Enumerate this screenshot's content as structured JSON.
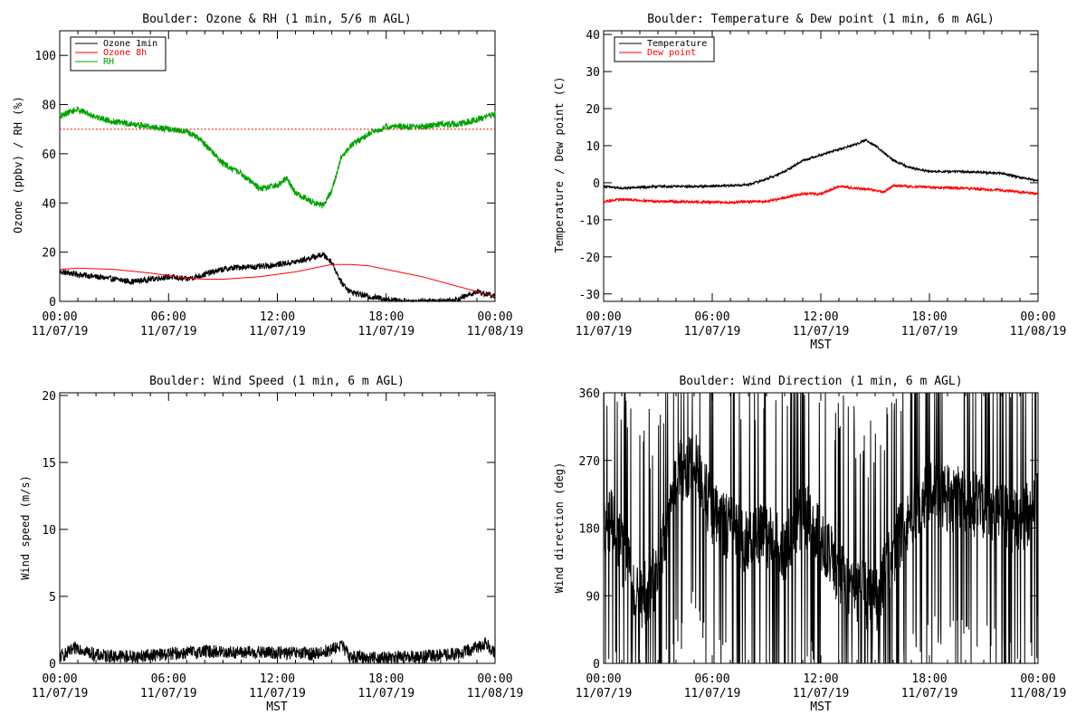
{
  "chart_data": [
    {
      "type": "line",
      "title": "Boulder: Ozone & RH (1 min, 5/6 m AGL)",
      "xlabel": "",
      "ylabel": "Ozone (ppbv) / RH (%)",
      "xlim": [
        0,
        24
      ],
      "ylim": [
        0,
        110
      ],
      "yticks": [
        0,
        20,
        40,
        60,
        80,
        100
      ],
      "xtick_labels": [
        {
          "time": "00:00",
          "date": "11/07/19"
        },
        {
          "time": "06:00",
          "date": "11/07/19"
        },
        {
          "time": "12:00",
          "date": "11/07/19"
        },
        {
          "time": "18:00",
          "date": "11/07/19"
        },
        {
          "time": "00:00",
          "date": "11/08/19"
        }
      ],
      "legend_position": "top-left",
      "reference_line": {
        "y": 70,
        "color": "#ff0000",
        "style": "dotted"
      },
      "series": [
        {
          "name": "Ozone 1min",
          "color": "#000000",
          "noise": 1.2,
          "x": [
            0,
            1,
            2,
            3,
            4,
            5,
            6,
            7,
            8,
            9,
            10,
            11,
            12,
            13,
            14,
            14.5,
            15,
            15.5,
            16,
            17,
            18,
            19,
            20,
            21,
            22,
            23,
            24
          ],
          "y": [
            12,
            11,
            10,
            9,
            8,
            9,
            10,
            9,
            11,
            13,
            14,
            14,
            15,
            16,
            18,
            19,
            16,
            8,
            4,
            2,
            1,
            0,
            0,
            0,
            1,
            4,
            2
          ]
        },
        {
          "name": "Ozone 8h",
          "color": "#ff0000",
          "noise": 0,
          "x": [
            0,
            1,
            3,
            5,
            7,
            8,
            9,
            11,
            13,
            14,
            15,
            16,
            17,
            18,
            20,
            22,
            23,
            24
          ],
          "y": [
            13,
            13.5,
            13,
            11.5,
            9.5,
            9,
            9,
            10,
            12,
            13.5,
            15,
            15,
            14.5,
            13,
            10,
            6,
            4,
            2
          ]
        },
        {
          "name": "RH",
          "color": "#00a000",
          "noise": 1.3,
          "x": [
            0,
            0.5,
            1,
            2,
            3,
            4,
            5,
            6,
            7,
            7.5,
            8,
            9,
            10,
            11,
            12,
            12.5,
            13,
            14,
            14.5,
            15,
            15.5,
            16,
            17,
            18,
            19,
            20,
            21,
            22,
            23,
            24
          ],
          "y": [
            75,
            77,
            78,
            75,
            73,
            72,
            71,
            70,
            69,
            67,
            64,
            56,
            52,
            46,
            47,
            50,
            44,
            40,
            39,
            45,
            58,
            63,
            68,
            71,
            71,
            71,
            72,
            72,
            74,
            76
          ]
        }
      ]
    },
    {
      "type": "line",
      "title": "Boulder: Temperature & Dew point (1 min, 6 m AGL)",
      "xlabel": "MST",
      "ylabel": "Temperature / Dew point (C)",
      "xlim": [
        0,
        24
      ],
      "ylim": [
        -32,
        41
      ],
      "yticks": [
        -30,
        -20,
        -10,
        0,
        10,
        20,
        30,
        40
      ],
      "xtick_labels": [
        {
          "time": "00:00",
          "date": "11/07/19"
        },
        {
          "time": "06:00",
          "date": "11/07/19"
        },
        {
          "time": "12:00",
          "date": "11/07/19"
        },
        {
          "time": "18:00",
          "date": "11/07/19"
        },
        {
          "time": "00:00",
          "date": "11/08/19"
        }
      ],
      "legend_position": "top-left",
      "series": [
        {
          "name": "Temperature",
          "color": "#000000",
          "noise": 0.3,
          "x": [
            0,
            1,
            3,
            5,
            7,
            8,
            9,
            10,
            11,
            12,
            13,
            14,
            14.5,
            15,
            16,
            17,
            18,
            20,
            22,
            23,
            24
          ],
          "y": [
            -1,
            -1.5,
            -1,
            -1,
            -0.8,
            -0.5,
            1,
            3,
            6,
            7.5,
            9,
            10.5,
            11.5,
            10,
            6,
            4,
            3,
            3,
            2.5,
            1.5,
            0.5
          ]
        },
        {
          "name": "Dew point",
          "color": "#ff0000",
          "noise": 0.35,
          "x": [
            0,
            1,
            3,
            5,
            7,
            8,
            9,
            10,
            11,
            12,
            13,
            14,
            15,
            15.5,
            16,
            17,
            18,
            20,
            22,
            24
          ],
          "y": [
            -5,
            -4.5,
            -5,
            -5.2,
            -5.3,
            -5.1,
            -5,
            -4,
            -3,
            -3,
            -1,
            -1.5,
            -2,
            -2.5,
            -0.8,
            -1,
            -1.2,
            -1.5,
            -2,
            -3
          ]
        }
      ]
    },
    {
      "type": "line",
      "title": "Boulder: Wind Speed (1 min, 6 m AGL)",
      "xlabel": "MST",
      "ylabel": "Wind speed (m/s)",
      "xlim": [
        0,
        24
      ],
      "ylim": [
        0,
        20.2
      ],
      "yticks": [
        0,
        5,
        10,
        15,
        20
      ],
      "xtick_labels": [
        {
          "time": "00:00",
          "date": "11/07/19"
        },
        {
          "time": "06:00",
          "date": "11/07/19"
        },
        {
          "time": "12:00",
          "date": "11/07/19"
        },
        {
          "time": "18:00",
          "date": "11/07/19"
        },
        {
          "time": "00:00",
          "date": "11/08/19"
        }
      ],
      "series": [
        {
          "name": "",
          "color": "#000000",
          "noise": 0.5,
          "x": [
            0,
            0.5,
            1,
            2,
            4,
            6,
            8,
            10,
            12,
            14,
            15,
            15.5,
            16,
            18,
            20,
            22,
            23,
            23.5,
            24
          ],
          "y": [
            0.5,
            0.8,
            1.2,
            0.6,
            0.5,
            0.7,
            0.9,
            0.8,
            0.8,
            0.7,
            1.0,
            1.4,
            0.5,
            0.4,
            0.5,
            0.7,
            1.2,
            1.5,
            0.8
          ]
        }
      ]
    },
    {
      "type": "line",
      "title": "Boulder: Wind Direction (1 min, 6 m AGL)",
      "xlabel": "MST",
      "ylabel": "Wind direction (deg)",
      "xlim": [
        0,
        24
      ],
      "ylim": [
        0,
        360
      ],
      "yticks": [
        0,
        90,
        180,
        270,
        360
      ],
      "xtick_labels": [
        {
          "time": "00:00",
          "date": "11/07/19"
        },
        {
          "time": "06:00",
          "date": "11/07/19"
        },
        {
          "time": "12:00",
          "date": "11/07/19"
        },
        {
          "time": "18:00",
          "date": "11/07/19"
        },
        {
          "time": "00:00",
          "date": "11/08/19"
        }
      ],
      "series": [
        {
          "name": "",
          "color": "#000000",
          "noise": 45,
          "x": [
            0,
            0.5,
            1,
            2,
            3,
            4,
            5,
            6,
            7,
            8,
            9,
            10,
            11,
            12,
            13,
            14,
            15,
            16,
            17,
            18,
            19,
            20,
            21,
            22,
            23,
            24
          ],
          "y": [
            180,
            190,
            150,
            80,
            120,
            250,
            270,
            200,
            180,
            160,
            170,
            150,
            200,
            170,
            120,
            100,
            80,
            150,
            200,
            230,
            220,
            215,
            210,
            200,
            180,
            220
          ]
        }
      ]
    }
  ]
}
